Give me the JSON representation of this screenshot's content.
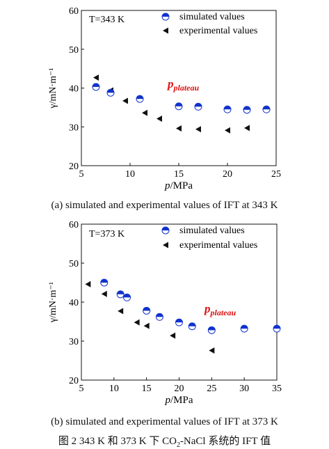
{
  "figure": {
    "caption_a": "(a)   simulated and experimental values of IFT at 343 K",
    "caption_b": "(b)   simulated and experimental values of IFT at 373 K",
    "title_prefix": "图 2   343 K 和 373 K 下 CO",
    "title_sub": "2",
    "title_suffix": "-NaCl 系统的 IFT 值"
  },
  "chart_data": [
    {
      "type": "scatter",
      "temperature_label": "T=343 K",
      "xlabel_italic": "p",
      "xlabel_unit": "/MPa",
      "ylabel": "γ/mN·m⁻¹",
      "xlim": [
        5,
        25
      ],
      "ylim": [
        20,
        60
      ],
      "xticks": [
        5,
        10,
        15,
        20,
        25
      ],
      "yticks": [
        20,
        30,
        40,
        50,
        60
      ],
      "annotation_main": "p",
      "annotation_sub": "plateau",
      "annotation_color": "#dd1111",
      "legend_position": "top-right",
      "series": [
        {
          "name": "simulated values",
          "marker": "half-filled-circle",
          "color": "#1133cc",
          "points": [
            [
              6.5,
              40.3
            ],
            [
              8.0,
              38.8
            ],
            [
              11.0,
              37.2
            ],
            [
              15.0,
              35.3
            ],
            [
              17.0,
              35.2
            ],
            [
              20.0,
              34.5
            ],
            [
              22.0,
              34.4
            ],
            [
              24.0,
              34.5
            ]
          ]
        },
        {
          "name": "experimental values",
          "marker": "left-triangle",
          "color": "#111111",
          "points": [
            [
              6.5,
              42.7
            ],
            [
              8.0,
              39.4
            ],
            [
              9.5,
              36.7
            ],
            [
              11.5,
              33.6
            ],
            [
              13.0,
              32.1
            ],
            [
              15.0,
              29.6
            ],
            [
              17.0,
              29.4
            ],
            [
              20.0,
              29.1
            ],
            [
              22.0,
              29.7
            ]
          ]
        }
      ]
    },
    {
      "type": "scatter",
      "temperature_label": "T=373 K",
      "xlabel_italic": "p",
      "xlabel_unit": "/MPa",
      "ylabel": "γ/mN·m⁻¹",
      "xlim": [
        5,
        35
      ],
      "ylim": [
        20,
        60
      ],
      "xticks": [
        5,
        10,
        15,
        20,
        25,
        30,
        35
      ],
      "yticks": [
        20,
        30,
        40,
        50,
        60
      ],
      "annotation_main": "p",
      "annotation_sub": "plateau",
      "annotation_color": "#dd1111",
      "legend_position": "top-right",
      "series": [
        {
          "name": "simulated values",
          "marker": "half-filled-circle",
          "color": "#1133cc",
          "points": [
            [
              8.5,
              45.0
            ],
            [
              11.0,
              42.0
            ],
            [
              12.0,
              41.2
            ],
            [
              15.0,
              37.8
            ],
            [
              17.0,
              36.2
            ],
            [
              20.0,
              34.8
            ],
            [
              22.0,
              33.8
            ],
            [
              25.0,
              32.8
            ],
            [
              30.0,
              33.2
            ],
            [
              35.0,
              33.2
            ]
          ]
        },
        {
          "name": "experimental values",
          "marker": "left-triangle",
          "color": "#111111",
          "points": [
            [
              6.0,
              44.6
            ],
            [
              8.5,
              42.1
            ],
            [
              11.0,
              37.7
            ],
            [
              13.5,
              34.8
            ],
            [
              15.0,
              33.9
            ],
            [
              19.0,
              31.4
            ],
            [
              25.0,
              27.6
            ]
          ]
        }
      ]
    }
  ]
}
